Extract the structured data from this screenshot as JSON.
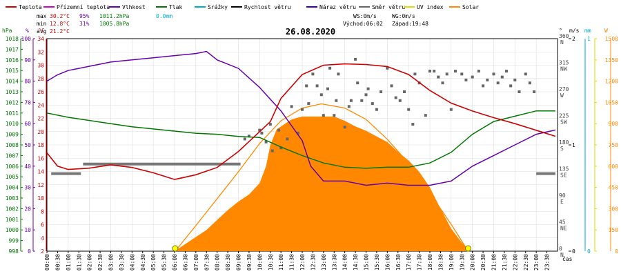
{
  "chart_data": {
    "type": "line",
    "title": "26.08.2020",
    "legend": [
      {
        "label": "Teplota",
        "color": "#cc0000"
      },
      {
        "label": "Přízemní teplota",
        "color": "#cc00cc"
      },
      {
        "label": "Vlhkost",
        "color": "#6600aa"
      },
      {
        "label": "Tlak",
        "color": "#007700"
      },
      {
        "label": "Srážky",
        "color": "#00aacc"
      },
      {
        "label": "Rychlost větru",
        "color": "#000000"
      },
      {
        "label": "Náraz větru",
        "color": "#3300aa"
      },
      {
        "label": "Směr větru",
        "color": "#666666"
      },
      {
        "label": "UV index",
        "color": "#dddd00"
      },
      {
        "label": "Solar",
        "color": "#ff8800"
      }
    ],
    "stats": {
      "max": {
        "label": "max",
        "temp": "30.2°C",
        "hum": "95%",
        "press": "1011.2hPa",
        "rain": "0.0mm"
      },
      "min": {
        "label": "min",
        "temp": "12.8°C",
        "hum": "31%",
        "press": "1005.8hPa"
      },
      "avg": {
        "label": "avg",
        "temp": "21.2°C"
      }
    },
    "wind_info": {
      "ws": "WS:0m/s",
      "wg": "WG:0m/s",
      "sunrise": "Východ:06:02",
      "sunset": "Západ:19:48"
    },
    "units": {
      "hpa": "hPa",
      "pct": "%",
      "degc": "°C",
      "deg": "°",
      "ms": "m/s",
      "mm": "mm",
      "w": "W",
      "x": "čas"
    },
    "axes": {
      "hpa_ticks": [
        "998",
        "999",
        "1000",
        "1001",
        "1002",
        "1003",
        "1004",
        "1005",
        "1006",
        "1007",
        "1008",
        "1009",
        "1010",
        "1011",
        "1012",
        "1013",
        "1014",
        "1015",
        "1016",
        "1017",
        "1018"
      ],
      "pct_ticks": [
        "0",
        "10",
        "20",
        "30",
        "40",
        "50",
        "60",
        "70",
        "80",
        "90",
        "100"
      ],
      "degc_ticks": [
        "2",
        "4",
        "6",
        "8",
        "10",
        "12",
        "14",
        "16",
        "18",
        "20",
        "22",
        "24",
        "26",
        "28",
        "30",
        "32",
        "34"
      ],
      "dir_ticks": [
        {
          "deg": "0",
          "lab": "N"
        },
        {
          "deg": "45",
          "lab": "NE"
        },
        {
          "deg": "90",
          "lab": "E"
        },
        {
          "deg": "135",
          "lab": "SE"
        },
        {
          "deg": "180",
          "lab": "S"
        },
        {
          "deg": "225",
          "lab": "SW"
        },
        {
          "deg": "270",
          "lab": "W"
        },
        {
          "deg": "315",
          "lab": "NW"
        },
        {
          "deg": "360",
          "lab": "N"
        }
      ],
      "ms_ticks": [
        "0",
        "1",
        "2"
      ],
      "mm_ticks": [
        "0",
        "1"
      ],
      "w_ticks": [
        "0",
        "150",
        "300",
        "450",
        "600",
        "750",
        "900",
        "1050",
        "1200",
        "1350",
        "1500"
      ],
      "x_ticks": [
        "00:00",
        "00:30",
        "01:00",
        "01:30",
        "02:00",
        "02:30",
        "03:00",
        "03:30",
        "04:00",
        "04:30",
        "05:00",
        "05:30",
        "06:00",
        "06:30",
        "07:00",
        "07:30",
        "08:00",
        "08:30",
        "09:00",
        "09:30",
        "10:00",
        "10:30",
        "11:00",
        "11:30",
        "12:00",
        "12:30",
        "13:00",
        "13:30",
        "14:00",
        "14:30",
        "15:00",
        "15:30",
        "16:00",
        "16:30",
        "17:00",
        "17:30",
        "18:00",
        "18:30",
        "19:00",
        "19:30",
        "20:00",
        "20:30",
        "21:00",
        "21:30",
        "22:00",
        "22:30",
        "23:00",
        "23:30"
      ]
    },
    "x_unit": "hours",
    "temperature": {
      "x": [
        0,
        0.5,
        1,
        2,
        3,
        4,
        5,
        6,
        7,
        8,
        9,
        10,
        10.5,
        11,
        12,
        13,
        14,
        15,
        16,
        17,
        18,
        19,
        20,
        21,
        22,
        23,
        23.9
      ],
      "y": [
        16.8,
        14.8,
        14.3,
        14.5,
        15,
        14.6,
        13.8,
        12.8,
        13.5,
        14.6,
        17,
        20,
        21.5,
        25,
        28.6,
        30,
        30.2,
        30.1,
        29.8,
        28.6,
        26.2,
        24.3,
        23.1,
        22.1,
        21.2,
        20.2,
        19.3
      ]
    },
    "humidity": {
      "x": [
        0,
        0.5,
        1,
        1.5,
        2,
        3,
        4,
        5,
        6,
        7,
        7.5,
        8,
        9,
        10,
        11,
        12,
        12.4,
        13,
        14,
        15,
        16,
        17,
        18,
        19,
        20,
        21,
        22,
        23,
        23.9
      ],
      "y": [
        80,
        83,
        85,
        86,
        87,
        89,
        90,
        91,
        92,
        93,
        94,
        90,
        86,
        77,
        66,
        52,
        40,
        33,
        33,
        31,
        32,
        31,
        31,
        33,
        40,
        45,
        50,
        55,
        57
      ]
    },
    "pressure": {
      "x": [
        0,
        1,
        2,
        3,
        4,
        5,
        6,
        7,
        8,
        9,
        10,
        11,
        12,
        13,
        14,
        15,
        16,
        17,
        18,
        19,
        20,
        21,
        22,
        23,
        23.9
      ],
      "y": [
        1011,
        1010.6,
        1010.3,
        1010,
        1009.7,
        1009.5,
        1009.3,
        1009.1,
        1009,
        1008.8,
        1008.7,
        1007.8,
        1007,
        1006.3,
        1005.9,
        1005.8,
        1005.9,
        1005.9,
        1006.3,
        1007.3,
        1009,
        1010.2,
        1010.7,
        1011.2,
        1011.2
      ]
    },
    "wind_speed": {
      "segments": [
        {
          "x": [
            0.2,
            1.6
          ],
          "y": [
            0.73,
            0.73
          ]
        },
        {
          "x": [
            1.7,
            9.1
          ],
          "y": [
            0.82,
            0.82
          ]
        },
        {
          "x": [
            23,
            23.9
          ],
          "y": [
            0.73,
            0.73
          ]
        }
      ]
    },
    "wind_direction": {
      "x": [
        9.3,
        9.5,
        10,
        10.1,
        10.3,
        10.5,
        10.6,
        10.9,
        11,
        11.3,
        11.5,
        11.8,
        12,
        12.2,
        12.3,
        12.5,
        12.7,
        12.9,
        13,
        13.2,
        13.3,
        13.5,
        13.6,
        13.7,
        14,
        14.2,
        14.3,
        14.5,
        14.6,
        14.8,
        15,
        15.1,
        15.3,
        15.5,
        15.7,
        16,
        16.2,
        16.4,
        16.6,
        16.8,
        17,
        17.2,
        17.3,
        17.5,
        17.8,
        18,
        18.2,
        18.4,
        18.6,
        18.8,
        19,
        19.2,
        19.5,
        19.7,
        20,
        20.3,
        20.5,
        20.7,
        21,
        21.2,
        21.4,
        21.6,
        21.8,
        22,
        22.2,
        22.5,
        22.7,
        22.9
      ],
      "y": [
        190,
        195,
        205,
        200,
        185,
        215,
        170,
        205,
        175,
        190,
        245,
        200,
        240,
        280,
        250,
        300,
        280,
        265,
        230,
        275,
        310,
        230,
        255,
        300,
        210,
        245,
        255,
        325,
        285,
        255,
        265,
        275,
        250,
        240,
        270,
        310,
        280,
        260,
        255,
        270,
        240,
        215,
        300,
        285,
        230,
        305,
        305,
        295,
        285,
        300,
        240,
        305,
        300,
        290,
        295,
        305,
        280,
        290,
        300,
        285,
        295,
        305,
        280,
        290,
        270,
        300,
        285,
        270
      ]
    },
    "solar": {
      "x": [
        6,
        6.5,
        7,
        7.5,
        8,
        8.5,
        9,
        9.5,
        10,
        10.3,
        10.5,
        10.8,
        11,
        11.5,
        12,
        12.5,
        13,
        13.5,
        14,
        14.5,
        15,
        15.5,
        16,
        16.5,
        17,
        17.5,
        18,
        18.5,
        19,
        19.5,
        19.9
      ],
      "y": [
        0,
        50,
        100,
        150,
        220,
        290,
        350,
        400,
        480,
        600,
        750,
        860,
        880,
        930,
        950,
        950,
        950,
        950,
        920,
        880,
        850,
        810,
        770,
        700,
        640,
        560,
        450,
        300,
        160,
        60,
        0
      ]
    },
    "solar_theoretical": {
      "x": [
        6.03,
        7,
        8,
        9,
        10,
        11,
        12,
        12.9,
        14,
        15,
        16,
        17,
        18,
        19,
        19.8
      ],
      "y": [
        0,
        180,
        370,
        560,
        760,
        920,
        1010,
        1040,
        1010,
        930,
        790,
        620,
        410,
        190,
        0
      ]
    }
  }
}
